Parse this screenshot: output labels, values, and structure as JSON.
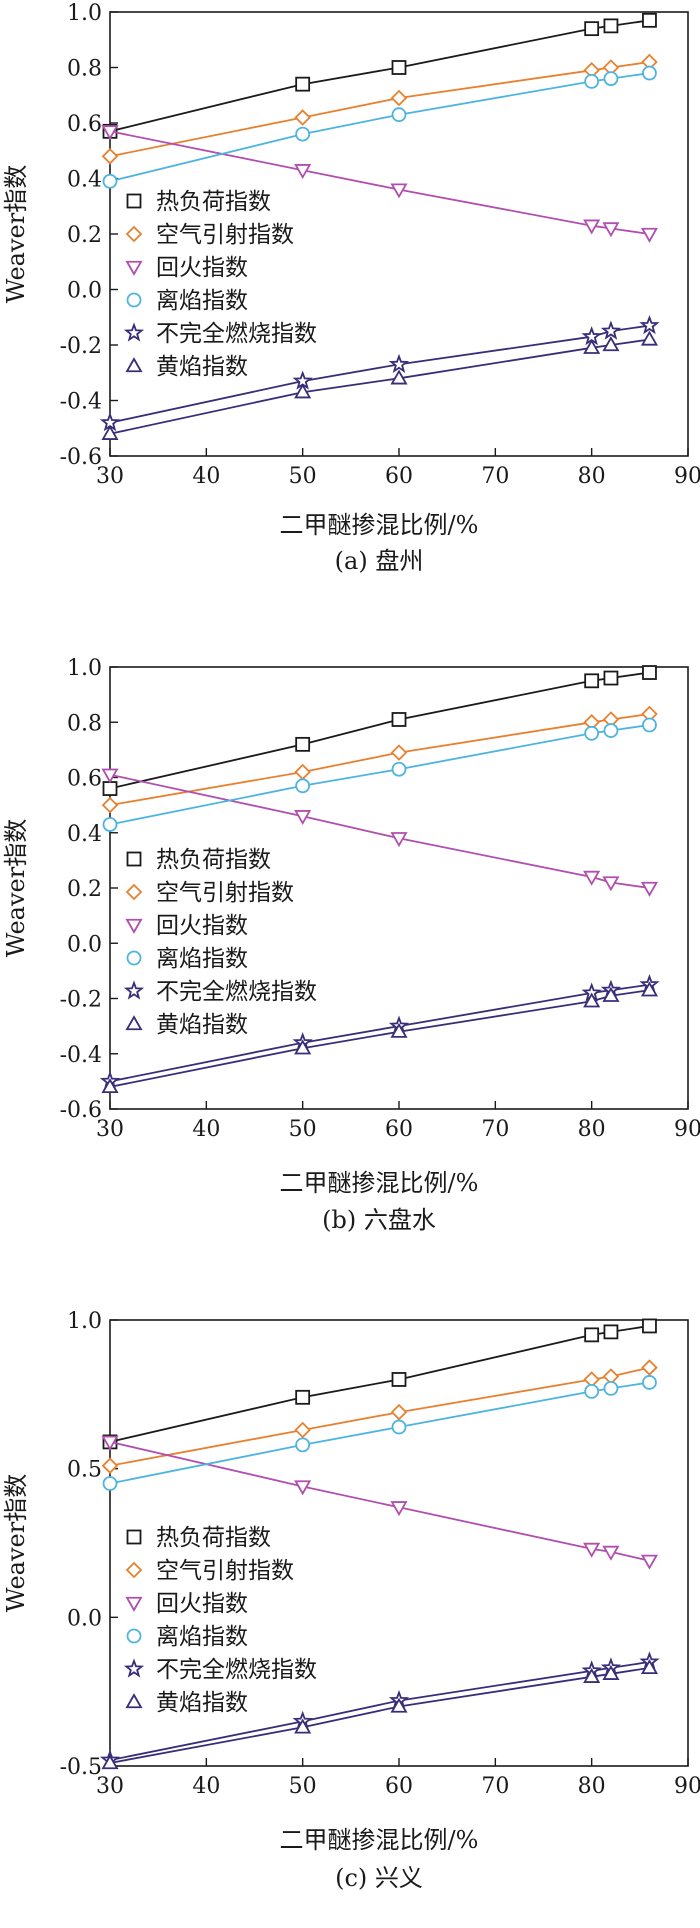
{
  "chart_data": [
    {
      "type": "line",
      "caption": "(a) 盘州",
      "xlabel": "二甲醚掺混比例/%",
      "ylabel": "Weaver指数",
      "xlim": [
        30,
        90
      ],
      "ylim": [
        -0.6,
        1.0
      ],
      "xticks": [
        30,
        40,
        50,
        60,
        70,
        80,
        90
      ],
      "yticks": [
        -0.6,
        -0.4,
        -0.2,
        0.0,
        0.2,
        0.4,
        0.6,
        0.8,
        1.0
      ],
      "ytick_labels": [
        "-0.6",
        "-0.4",
        "-0.2",
        "0.0",
        "0.2",
        "0.4",
        "0.6",
        "0.8",
        "1.0"
      ],
      "legend_position": "center-left",
      "x": [
        30,
        50,
        60,
        80,
        82,
        86
      ],
      "series": [
        {
          "name": "热负荷指数",
          "marker": "square",
          "color": "#1a1a1a",
          "values": [
            0.57,
            0.74,
            0.8,
            0.94,
            0.95,
            0.97
          ]
        },
        {
          "name": "空气引射指数",
          "marker": "diamond",
          "color": "#e8812f",
          "values": [
            0.48,
            0.62,
            0.69,
            0.79,
            0.8,
            0.82
          ]
        },
        {
          "name": "回火指数",
          "marker": "triangle-down",
          "color": "#b04fae",
          "values": [
            0.57,
            0.43,
            0.36,
            0.23,
            0.22,
            0.2
          ]
        },
        {
          "name": "离焰指数",
          "marker": "circle",
          "color": "#4cb4df",
          "values": [
            0.39,
            0.56,
            0.63,
            0.75,
            0.76,
            0.78
          ]
        },
        {
          "name": "不完全燃烧指数",
          "marker": "star",
          "color": "#3a2d78",
          "values": [
            -0.48,
            -0.33,
            -0.27,
            -0.17,
            -0.15,
            -0.13
          ]
        },
        {
          "name": "黄焰指数",
          "marker": "triangle-up",
          "color": "#3a2d78",
          "values": [
            -0.52,
            -0.37,
            -0.32,
            -0.21,
            -0.2,
            -0.18
          ]
        }
      ]
    },
    {
      "type": "line",
      "caption": "(b) 六盘水",
      "xlabel": "二甲醚掺混比例/%",
      "ylabel": "Weaver指数",
      "xlim": [
        30,
        90
      ],
      "ylim": [
        -0.6,
        1.0
      ],
      "xticks": [
        30,
        40,
        50,
        60,
        70,
        80,
        90
      ],
      "yticks": [
        -0.6,
        -0.4,
        -0.2,
        0.0,
        0.2,
        0.4,
        0.6,
        0.8,
        1.0
      ],
      "ytick_labels": [
        "-0.6",
        "-0.4",
        "-0.2",
        "0.0",
        "0.2",
        "0.4",
        "0.6",
        "0.8",
        "1.0"
      ],
      "legend_position": "center-left",
      "x": [
        30,
        50,
        60,
        80,
        82,
        86
      ],
      "series": [
        {
          "name": "热负荷指数",
          "marker": "square",
          "color": "#1a1a1a",
          "values": [
            0.56,
            0.72,
            0.81,
            0.95,
            0.96,
            0.98
          ]
        },
        {
          "name": "空气引射指数",
          "marker": "diamond",
          "color": "#e8812f",
          "values": [
            0.5,
            0.62,
            0.69,
            0.8,
            0.81,
            0.83
          ]
        },
        {
          "name": "回火指数",
          "marker": "triangle-down",
          "color": "#b04fae",
          "values": [
            0.61,
            0.46,
            0.38,
            0.24,
            0.22,
            0.2
          ]
        },
        {
          "name": "离焰指数",
          "marker": "circle",
          "color": "#4cb4df",
          "values": [
            0.43,
            0.57,
            0.63,
            0.76,
            0.77,
            0.79
          ]
        },
        {
          "name": "不完全燃烧指数",
          "marker": "star",
          "color": "#3a2d78",
          "values": [
            -0.5,
            -0.36,
            -0.3,
            -0.18,
            -0.17,
            -0.15
          ]
        },
        {
          "name": "黄焰指数",
          "marker": "triangle-up",
          "color": "#3a2d78",
          "values": [
            -0.52,
            -0.38,
            -0.32,
            -0.21,
            -0.19,
            -0.17
          ]
        }
      ]
    },
    {
      "type": "line",
      "caption": "(c) 兴义",
      "xlabel": "二甲醚掺混比例/%",
      "ylabel": "Weaver指数",
      "xlim": [
        30,
        90
      ],
      "ylim": [
        -0.5,
        1.0
      ],
      "xticks": [
        30,
        40,
        50,
        60,
        70,
        80,
        90
      ],
      "yticks": [
        -0.5,
        0.0,
        0.5,
        1.0
      ],
      "ytick_labels": [
        "-0.5",
        "0.0",
        "0.5",
        "1.0"
      ],
      "legend_position": "center-left",
      "x": [
        30,
        50,
        60,
        80,
        82,
        86
      ],
      "series": [
        {
          "name": "热负荷指数",
          "marker": "square",
          "color": "#1a1a1a",
          "values": [
            0.59,
            0.74,
            0.8,
            0.95,
            0.96,
            0.98
          ]
        },
        {
          "name": "空气引射指数",
          "marker": "diamond",
          "color": "#e8812f",
          "values": [
            0.51,
            0.63,
            0.69,
            0.8,
            0.81,
            0.84
          ]
        },
        {
          "name": "回火指数",
          "marker": "triangle-down",
          "color": "#b04fae",
          "values": [
            0.59,
            0.44,
            0.37,
            0.23,
            0.22,
            0.19
          ]
        },
        {
          "name": "离焰指数",
          "marker": "circle",
          "color": "#4cb4df",
          "values": [
            0.45,
            0.58,
            0.64,
            0.76,
            0.77,
            0.79
          ]
        },
        {
          "name": "不完全燃烧指数",
          "marker": "star",
          "color": "#3a2d78",
          "values": [
            -0.48,
            -0.35,
            -0.28,
            -0.18,
            -0.17,
            -0.15
          ]
        },
        {
          "name": "黄焰指数",
          "marker": "triangle-up",
          "color": "#3a2d78",
          "values": [
            -0.49,
            -0.37,
            -0.3,
            -0.2,
            -0.19,
            -0.17
          ]
        }
      ]
    }
  ]
}
